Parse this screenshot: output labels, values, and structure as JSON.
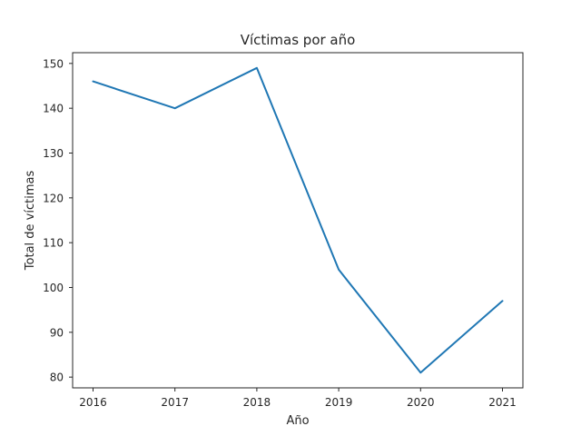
{
  "chart_data": {
    "type": "line",
    "title": "Víctimas por año",
    "xlabel": "Año",
    "ylabel": "Total de víctimas",
    "x": [
      "2016",
      "2017",
      "2018",
      "2019",
      "2020",
      "2021"
    ],
    "y_ticks": [
      "80",
      "90",
      "100",
      "110",
      "120",
      "130",
      "140",
      "150"
    ],
    "series": [
      {
        "values": [
          146,
          140,
          149,
          104,
          81,
          97
        ]
      }
    ],
    "ylim": [
      77.6,
      152.4
    ],
    "grid": false,
    "colors": {
      "line": "#1f77b4",
      "axes": "#262626"
    }
  }
}
